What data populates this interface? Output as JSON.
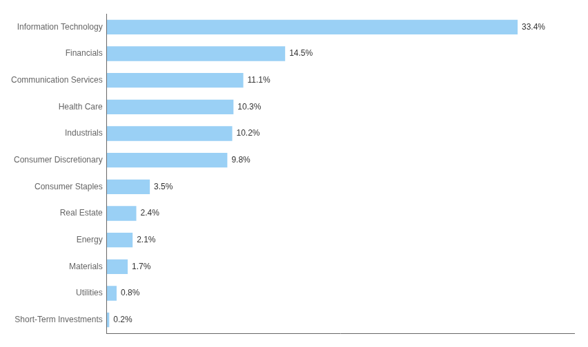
{
  "chart_data": {
    "type": "bar",
    "orientation": "horizontal",
    "categories": [
      "Short-Term Investments",
      "Utilities",
      "Materials",
      "Energy",
      "Real Estate",
      "Consumer Staples",
      "Consumer Discretionary",
      "Industrials",
      "Health Care",
      "Communication Services",
      "Financials",
      "Information Technology"
    ],
    "values": [
      0.2,
      0.8,
      1.7,
      2.1,
      2.4,
      3.5,
      9.8,
      10.2,
      10.3,
      11.1,
      14.5,
      33.4
    ],
    "value_labels": [
      "0.2%",
      "0.8%",
      "1.7%",
      "2.1%",
      "2.4%",
      "3.5%",
      "9.8%",
      "10.2%",
      "10.3%",
      "11.1%",
      "14.5%",
      "33.4%"
    ],
    "data_labels": true,
    "xlim": [
      0,
      38
    ],
    "grid": false,
    "tick_labels": "y"
  }
}
